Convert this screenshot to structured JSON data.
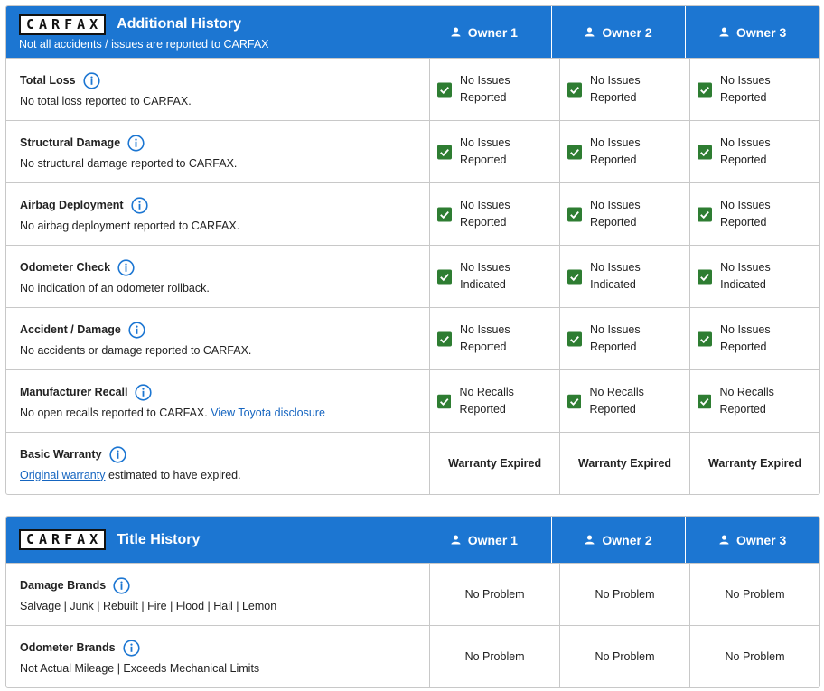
{
  "sections": [
    {
      "logo": "CARFAX",
      "title": "Additional History",
      "subtitle": "Not all accidents / issues are reported to CARFAX",
      "owners": [
        "Owner 1",
        "Owner 2",
        "Owner 3"
      ],
      "rows": [
        {
          "label": "Total Loss",
          "description": [
            "No total loss reported to CARFAX."
          ],
          "status_style": "check",
          "statuses": [
            "No Issues Reported",
            "No Issues Reported",
            "No Issues Reported"
          ]
        },
        {
          "label": "Structural Damage",
          "description": [
            "No structural damage reported to CARFAX."
          ],
          "status_style": "check",
          "statuses": [
            "No Issues Reported",
            "No Issues Reported",
            "No Issues Reported"
          ]
        },
        {
          "label": "Airbag Deployment",
          "description": [
            "No airbag deployment reported to CARFAX."
          ],
          "status_style": "check",
          "statuses": [
            "No Issues Reported",
            "No Issues Reported",
            "No Issues Reported"
          ]
        },
        {
          "label": "Odometer Check",
          "description": [
            "No indication of an odometer rollback."
          ],
          "status_style": "check",
          "statuses": [
            "No Issues Indicated",
            "No Issues Indicated",
            "No Issues Indicated"
          ]
        },
        {
          "label": "Accident / Damage",
          "description": [
            "No accidents or damage reported to CARFAX."
          ],
          "status_style": "check",
          "statuses": [
            "No Issues Reported",
            "No Issues Reported",
            "No Issues Reported"
          ]
        },
        {
          "label": "Manufacturer Recall",
          "description": [
            "No open recalls reported to CARFAX.",
            {
              "link": "View Toyota disclosure"
            }
          ],
          "status_style": "check",
          "statuses": [
            "No Recalls Reported",
            "No Recalls Reported",
            "No Recalls Reported"
          ]
        },
        {
          "label": "Basic Warranty",
          "description": [
            {
              "link": "Original warranty",
              "underline": true
            },
            "estimated to have expired."
          ],
          "status_style": "bold",
          "statuses": [
            "Warranty Expired",
            "Warranty Expired",
            "Warranty Expired"
          ]
        }
      ]
    },
    {
      "logo": "CARFAX",
      "title": "Title History",
      "owners": [
        "Owner 1",
        "Owner 2",
        "Owner 3"
      ],
      "rows": [
        {
          "label": "Damage Brands",
          "description": [
            "Salvage | Junk | Rebuilt | Fire | Flood | Hail | Lemon"
          ],
          "status_style": "plain",
          "statuses": [
            "No Problem",
            "No Problem",
            "No Problem"
          ]
        },
        {
          "label": "Odometer Brands",
          "description": [
            "Not Actual Mileage | Exceeds Mechanical Limits"
          ],
          "status_style": "plain",
          "statuses": [
            "No Problem",
            "No Problem",
            "No Problem"
          ]
        }
      ]
    }
  ]
}
